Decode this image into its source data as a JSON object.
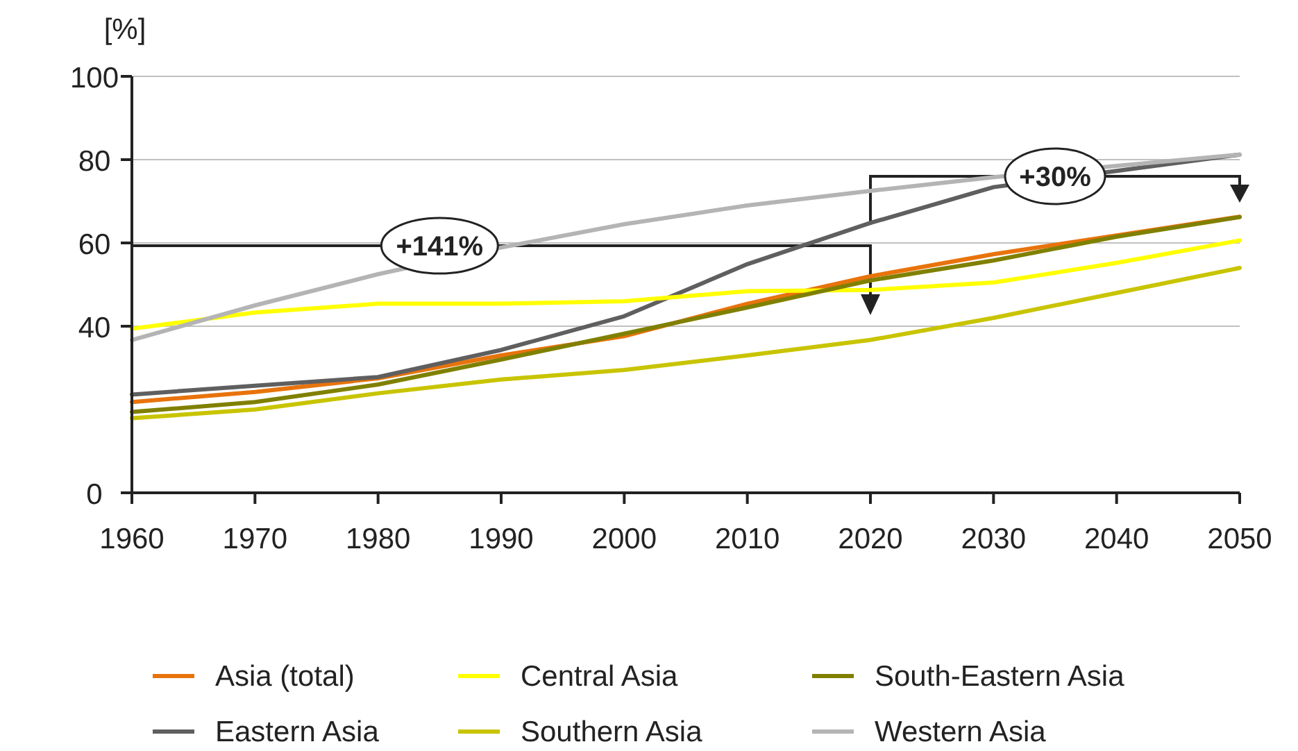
{
  "chart_data": {
    "type": "line",
    "ylabel": "[%]",
    "x": [
      1960,
      1970,
      1980,
      1990,
      2000,
      2010,
      2020,
      2030,
      2040,
      2050
    ],
    "xlim": [
      1960,
      2050
    ],
    "xticks": [
      1960,
      1970,
      1980,
      1990,
      2000,
      2010,
      2020,
      2030,
      2040,
      2050
    ],
    "ylim": [
      0,
      100
    ],
    "yticks": [
      0,
      40,
      60,
      80,
      100
    ],
    "grid": "y",
    "legend": "bottom",
    "marker": "none",
    "line_style": "solid",
    "series": [
      {
        "name": "Asia (total)",
        "color": "#e8730c",
        "values": [
          21.8,
          24.2,
          27.5,
          33,
          37.6,
          45.4,
          52,
          57.3,
          61.8,
          66.3
        ]
      },
      {
        "name": "Eastern Asia",
        "color": "#5f5f5f",
        "values": [
          23.6,
          25.7,
          27.8,
          34.3,
          42.4,
          54.9,
          64.8,
          73.4,
          77.3,
          81.2
        ]
      },
      {
        "name": "Central Asia",
        "color": "#ffff00",
        "values": [
          39.4,
          43.3,
          45.4,
          45.4,
          46,
          48.4,
          48.7,
          50.5,
          55.2,
          60.6
        ]
      },
      {
        "name": "Southern Asia",
        "color": "#c8c400",
        "values": [
          17.9,
          20,
          23.9,
          27.2,
          29.5,
          33,
          36.7,
          42,
          48,
          54
        ]
      },
      {
        "name": "South-Eastern Asia",
        "color": "#808000",
        "values": [
          19.4,
          21.8,
          26,
          32,
          38.2,
          44.5,
          51,
          55.8,
          61.5,
          66.2
        ]
      },
      {
        "name": "Western Asia",
        "color": "#b4b4b4",
        "values": [
          36.7,
          45,
          52.5,
          58.9,
          64.5,
          69,
          72.5,
          75.8,
          78.5,
          81.2
        ]
      }
    ],
    "annotations": [
      "+141%",
      "+30%"
    ]
  }
}
